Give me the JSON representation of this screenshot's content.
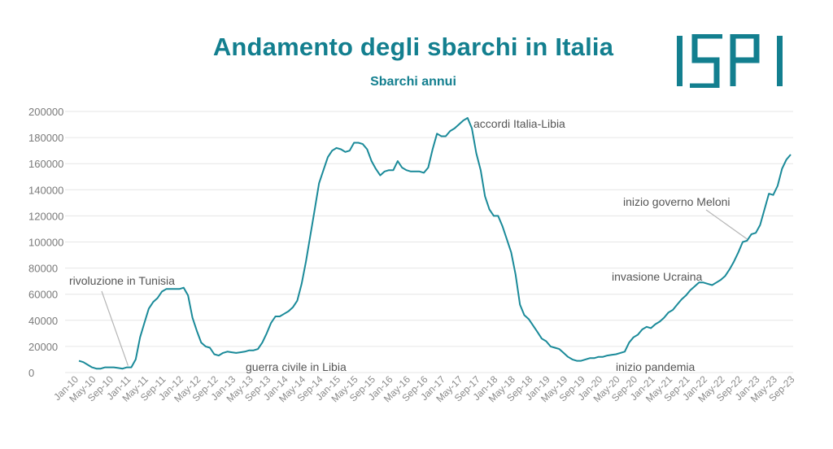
{
  "header": {
    "title": "Andamento degli sbarchi in Italia",
    "subtitle": "Sbarchi annui",
    "logo_text": "ISPI"
  },
  "colors": {
    "brand": "#137f8f",
    "line": "#1a8a99",
    "grid": "#e6e6e6",
    "annotation": "#555555",
    "leader": "#b5b5b5"
  },
  "chart_data": {
    "type": "line",
    "title": "Andamento degli sbarchi in Italia",
    "subtitle": "Sbarchi annui",
    "xlabel": "",
    "ylabel": "",
    "ylim": [
      0,
      200000
    ],
    "yticks": [
      0,
      20000,
      40000,
      60000,
      80000,
      100000,
      120000,
      140000,
      160000,
      180000,
      200000
    ],
    "grid": true,
    "x_tick_labels": [
      "Jan-10",
      "May-10",
      "Sep-10",
      "Jan-11",
      "May-11",
      "Sep-11",
      "Jan-12",
      "May-12",
      "Sep-12",
      "Jan-13",
      "May-13",
      "Sep-13",
      "Jan-14",
      "May-14",
      "Sep-14",
      "Jan-15",
      "May-15",
      "Sep-15",
      "Jan-16",
      "May-16",
      "Sep-16",
      "Jan-17",
      "May-17",
      "Sep-17",
      "Jan-18",
      "May-18",
      "Sep-18",
      "Jan-19",
      "May-19",
      "Sep-19",
      "Jan-20",
      "May-20",
      "Sep-20",
      "Jan-21",
      "May-21",
      "Sep-21",
      "Jan-22",
      "May-22",
      "Sep-22",
      "Jan-23",
      "May-23",
      "Sep-23"
    ],
    "series": [
      {
        "values": [
          9000,
          8000,
          6000,
          4000,
          3000,
          3000,
          4000,
          4000,
          4000,
          3500,
          3000,
          4000,
          4000,
          10000,
          27000,
          38000,
          49000,
          54000,
          57000,
          62000,
          64000,
          64000,
          64000,
          64000,
          65000,
          59000,
          42000,
          32000,
          23000,
          20000,
          19000,
          14000,
          13000,
          15000,
          16000,
          15500,
          15000,
          15500,
          16000,
          17000,
          17000,
          18000,
          23000,
          30000,
          38000,
          43000,
          43000,
          45000,
          47000,
          50000,
          55000,
          68000,
          85000,
          105000,
          125000,
          145000,
          155000,
          165000,
          170000,
          172000,
          171000,
          169000,
          170000,
          176000,
          176000,
          175000,
          171000,
          162000,
          156000,
          151000,
          154000,
          155000,
          155000,
          162000,
          157000,
          155000,
          154000,
          154000,
          154000,
          153000,
          157000,
          171000,
          183000,
          181000,
          181000,
          185000,
          187000,
          190000,
          193000,
          195000,
          187000,
          168000,
          155000,
          135000,
          125000,
          120000,
          120000,
          112000,
          102000,
          92000,
          75000,
          52000,
          44000,
          41000,
          36000,
          31000,
          26000,
          24000,
          20000,
          19000,
          18000,
          15000,
          12000,
          10000,
          9000,
          9000,
          10000,
          11000,
          11000,
          12000,
          12000,
          13000,
          13500,
          14000,
          15000,
          16000,
          23000,
          27000,
          29000,
          33000,
          35000,
          34000,
          37000,
          39000,
          42000,
          46000,
          48000,
          52000,
          56000,
          59000,
          63000,
          66000,
          69000,
          69000,
          68000,
          67000,
          69000,
          71000,
          74000,
          79000,
          85000,
          92000,
          100000,
          101000,
          106000,
          107000,
          113000,
          125000,
          137000,
          136000,
          143000,
          156000,
          163000,
          167000
        ]
      }
    ],
    "annotations": [
      {
        "text": "rivoluzione in Tunisia",
        "x_label": "Jan-11"
      },
      {
        "text": "guerra civile in Libia",
        "x_label": "Sep-12"
      },
      {
        "text": "accordi Italia-Libia",
        "x_label": "Jul-17"
      },
      {
        "text": "inizio pandemia",
        "x_label": "Mar-20"
      },
      {
        "text": "invasione Ucraina",
        "x_label": "Feb-22"
      },
      {
        "text": "inizio governo Meloni",
        "x_label": "Oct-22"
      }
    ]
  }
}
